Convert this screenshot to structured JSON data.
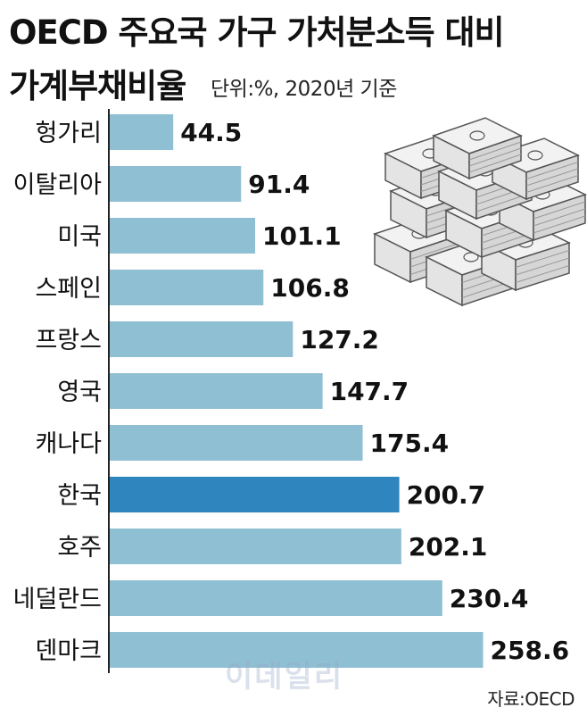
{
  "header": {
    "title_line1": "OECD 주요국 가구 가처분소득 대비",
    "title_line2": "가계부채비율",
    "unit": "단위:%, 2020년 기준"
  },
  "footer": {
    "source": "자료:OECD",
    "watermark": "이데일리"
  },
  "colors": {
    "bar": "#8fbfd3",
    "highlight_bar": "#2f86bf",
    "axis": "#222222",
    "money_outline": "#555555",
    "money_fill": "#f2f2f2"
  },
  "decoration": {
    "icon": "money-stack-icon"
  },
  "chart_data": {
    "type": "bar",
    "orientation": "horizontal",
    "categories": [
      "헝가리",
      "이탈리아",
      "미국",
      "스페인",
      "프랑스",
      "영국",
      "캐나다",
      "한국",
      "호주",
      "네덜란드",
      "덴마크"
    ],
    "values": [
      44.5,
      91.4,
      101.1,
      106.8,
      127.2,
      147.7,
      175.4,
      200.7,
      202.1,
      230.4,
      258.6
    ],
    "value_labels": [
      "44.5",
      "91.4",
      "101.1",
      "106.8",
      "127.2",
      "147.7",
      "175.4",
      "200.7",
      "202.1",
      "230.4",
      "258.6"
    ],
    "highlight": "한국",
    "xlim": [
      0,
      270
    ],
    "grid": false,
    "legend": "none"
  }
}
